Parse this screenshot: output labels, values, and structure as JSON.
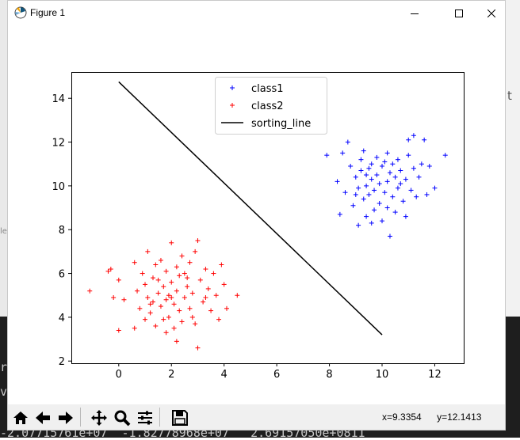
{
  "window": {
    "title": "Figure 1"
  },
  "background_terminal": {
    "line1": "r",
    "line2": "v",
    "line3": "-2.07715761e+07  -1.82778968e+07   2.69157050e+0811",
    "side_char": "t",
    "side_label": "le"
  },
  "toolbar": {
    "icons": [
      "home-icon",
      "back-icon",
      "forward-icon",
      "pan-icon",
      "zoom-icon",
      "configure-subplots-icon",
      "save-icon"
    ],
    "coord_x": "x=9.3354",
    "coord_y": "y=12.1413"
  },
  "colors": {
    "class1": "#0000ff",
    "class2": "#ff0000",
    "line": "#000000"
  },
  "chart_data": {
    "type": "scatter",
    "xlim": [
      -1.8,
      13.1
    ],
    "ylim": [
      1.9,
      15.2
    ],
    "xticks": [
      0,
      2,
      4,
      6,
      8,
      10,
      12
    ],
    "yticks": [
      2,
      4,
      6,
      8,
      10,
      12,
      14
    ],
    "grid": false,
    "legend_position": "upper center",
    "legend": [
      "class1",
      "class2",
      "sorting_line"
    ],
    "series": [
      {
        "name": "class1",
        "marker": "+",
        "color": "#0000ff",
        "points": [
          [
            7.9,
            11.4
          ],
          [
            8.3,
            10.2
          ],
          [
            8.4,
            8.7
          ],
          [
            8.5,
            11.5
          ],
          [
            8.6,
            9.7
          ],
          [
            8.7,
            12.0
          ],
          [
            8.8,
            10.9
          ],
          [
            8.9,
            9.1
          ],
          [
            9.0,
            10.4
          ],
          [
            9.1,
            8.2
          ],
          [
            9.1,
            9.9
          ],
          [
            9.2,
            11.2
          ],
          [
            9.2,
            10.7
          ],
          [
            9.3,
            9.4
          ],
          [
            9.3,
            11.6
          ],
          [
            9.4,
            10.0
          ],
          [
            9.4,
            8.6
          ],
          [
            9.5,
            10.8
          ],
          [
            9.5,
            9.6
          ],
          [
            9.6,
            11.0
          ],
          [
            9.6,
            10.3
          ],
          [
            9.7,
            8.9
          ],
          [
            9.7,
            9.8
          ],
          [
            9.8,
            11.3
          ],
          [
            9.8,
            10.5
          ],
          [
            9.9,
            9.2
          ],
          [
            9.9,
            10.1
          ],
          [
            10.0,
            10.9
          ],
          [
            10.0,
            8.4
          ],
          [
            10.1,
            9.7
          ],
          [
            10.1,
            11.1
          ],
          [
            10.2,
            10.2
          ],
          [
            10.2,
            9.0
          ],
          [
            10.3,
            10.6
          ],
          [
            10.3,
            7.7
          ],
          [
            10.4,
            9.5
          ],
          [
            10.4,
            11.0
          ],
          [
            10.5,
            10.4
          ],
          [
            10.5,
            8.8
          ],
          [
            10.6,
            9.9
          ],
          [
            10.6,
            11.2
          ],
          [
            10.7,
            10.7
          ],
          [
            10.8,
            9.3
          ],
          [
            10.9,
            10.3
          ],
          [
            10.9,
            8.6
          ],
          [
            11.0,
            12.1
          ],
          [
            11.0,
            11.4
          ],
          [
            11.1,
            9.8
          ],
          [
            11.2,
            12.3
          ],
          [
            11.2,
            10.8
          ],
          [
            11.3,
            9.5
          ],
          [
            11.4,
            10.4
          ],
          [
            11.6,
            12.1
          ],
          [
            11.7,
            9.6
          ],
          [
            11.8,
            10.9
          ],
          [
            12.0,
            9.9
          ],
          [
            12.4,
            11.4
          ],
          [
            9.0,
            9.6
          ],
          [
            9.6,
            8.3
          ],
          [
            10.7,
            10.1
          ],
          [
            10.2,
            11.5
          ],
          [
            11.5,
            11.0
          ],
          [
            9.4,
            10.5
          ]
        ]
      },
      {
        "name": "class2",
        "marker": "+",
        "color": "#ff0000",
        "points": [
          [
            -1.1,
            5.2
          ],
          [
            -0.4,
            6.1
          ],
          [
            -0.3,
            6.2
          ],
          [
            -0.2,
            4.9
          ],
          [
            0.0,
            5.7
          ],
          [
            0.0,
            3.4
          ],
          [
            0.2,
            4.8
          ],
          [
            0.6,
            6.5
          ],
          [
            0.6,
            3.5
          ],
          [
            0.7,
            5.2
          ],
          [
            0.8,
            4.4
          ],
          [
            0.9,
            6.0
          ],
          [
            1.0,
            5.5
          ],
          [
            1.0,
            3.9
          ],
          [
            1.1,
            4.9
          ],
          [
            1.1,
            7.0
          ],
          [
            1.2,
            4.2
          ],
          [
            1.3,
            5.8
          ],
          [
            1.3,
            4.7
          ],
          [
            1.4,
            3.6
          ],
          [
            1.4,
            6.4
          ],
          [
            1.5,
            5.1
          ],
          [
            1.6,
            4.5
          ],
          [
            1.6,
            6.6
          ],
          [
            1.7,
            5.4
          ],
          [
            1.7,
            3.9
          ],
          [
            1.8,
            4.8
          ],
          [
            1.8,
            6.1
          ],
          [
            1.9,
            5.0
          ],
          [
            1.9,
            4.0
          ],
          [
            2.0,
            5.6
          ],
          [
            2.0,
            7.4
          ],
          [
            2.1,
            4.6
          ],
          [
            2.1,
            3.5
          ],
          [
            2.2,
            6.3
          ],
          [
            2.2,
            5.2
          ],
          [
            2.3,
            4.3
          ],
          [
            2.3,
            5.9
          ],
          [
            2.4,
            6.8
          ],
          [
            2.4,
            3.8
          ],
          [
            2.5,
            4.9
          ],
          [
            2.5,
            6.0
          ],
          [
            2.6,
            5.4
          ],
          [
            2.7,
            4.4
          ],
          [
            2.7,
            6.5
          ],
          [
            2.8,
            5.1
          ],
          [
            2.9,
            3.7
          ],
          [
            2.9,
            7.0
          ],
          [
            3.0,
            2.6
          ],
          [
            3.0,
            7.5
          ],
          [
            3.1,
            5.7
          ],
          [
            3.2,
            4.7
          ],
          [
            3.3,
            6.2
          ],
          [
            3.4,
            5.3
          ],
          [
            3.5,
            4.3
          ],
          [
            3.6,
            6.0
          ],
          [
            3.7,
            5.0
          ],
          [
            3.8,
            3.9
          ],
          [
            3.9,
            6.4
          ],
          [
            4.0,
            5.5
          ],
          [
            4.1,
            4.4
          ],
          [
            4.5,
            5.0
          ],
          [
            2.2,
            2.9
          ],
          [
            1.5,
            5.7
          ],
          [
            2.8,
            4.0
          ],
          [
            1.2,
            4.6
          ],
          [
            2.0,
            4.9
          ],
          [
            2.6,
            5.8
          ],
          [
            1.8,
            3.3
          ],
          [
            3.3,
            4.9
          ]
        ]
      },
      {
        "name": "sorting_line",
        "type": "line",
        "color": "#000000",
        "points": [
          [
            0.0,
            14.75
          ],
          [
            10.0,
            3.2
          ]
        ]
      }
    ]
  }
}
